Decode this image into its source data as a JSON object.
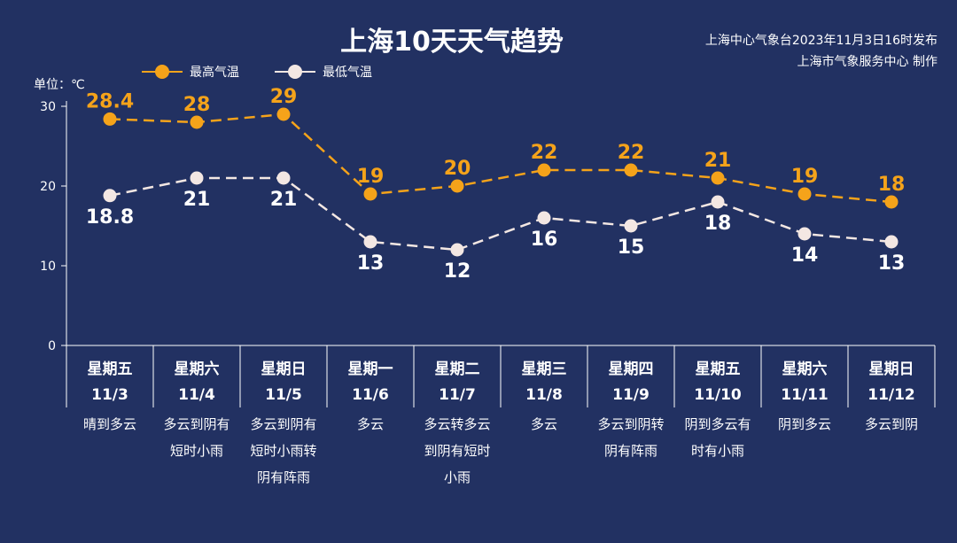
{
  "chart_data": {
    "type": "line",
    "title": "上海10天天气趋势",
    "issuer_line1": "上海中心气象台2023年11月3日16时发布",
    "issuer_line2": "上海市气象服务中心 制作",
    "ylabel": "单位：℃",
    "ylim": [
      0,
      30
    ],
    "yticks": [
      "0",
      "10",
      "20",
      "30"
    ],
    "grid": false,
    "legend_position": "top-left",
    "colors": {
      "high": "#F5A31A",
      "low": "#F3E7E3"
    },
    "days": [
      {
        "weekday": "星期五",
        "date": "11/3",
        "weather": [
          "晴到多云"
        ]
      },
      {
        "weekday": "星期六",
        "date": "11/4",
        "weather": [
          "多云到阴有",
          "短时小雨"
        ]
      },
      {
        "weekday": "星期日",
        "date": "11/5",
        "weather": [
          "多云到阴有",
          "短时小雨转",
          "阴有阵雨"
        ]
      },
      {
        "weekday": "星期一",
        "date": "11/6",
        "weather": [
          "多云"
        ]
      },
      {
        "weekday": "星期二",
        "date": "11/7",
        "weather": [
          "多云转多云",
          "到阴有短时",
          "小雨"
        ]
      },
      {
        "weekday": "星期三",
        "date": "11/8",
        "weather": [
          "多云"
        ]
      },
      {
        "weekday": "星期四",
        "date": "11/9",
        "weather": [
          "多云到阴转",
          "阴有阵雨"
        ]
      },
      {
        "weekday": "星期五",
        "date": "11/10",
        "weather": [
          "阴到多云有",
          "时有小雨"
        ]
      },
      {
        "weekday": "星期六",
        "date": "11/11",
        "weather": [
          "阴到多云"
        ]
      },
      {
        "weekday": "星期日",
        "date": "11/12",
        "weather": [
          "多云到阴"
        ]
      }
    ],
    "series": [
      {
        "name": "最高气温",
        "key": "high",
        "values": [
          28.4,
          28,
          29,
          19,
          20,
          22,
          22,
          21,
          19,
          18
        ],
        "labels": [
          "28.4",
          "28",
          "29",
          "19",
          "20",
          "22",
          "22",
          "21",
          "19",
          "18"
        ]
      },
      {
        "name": "最低气温",
        "key": "low",
        "values": [
          18.8,
          21,
          21,
          13,
          12,
          16,
          15,
          18,
          14,
          13
        ],
        "labels": [
          "18.8",
          "21",
          "21",
          "13",
          "12",
          "16",
          "15",
          "18",
          "14",
          "13"
        ]
      }
    ]
  }
}
